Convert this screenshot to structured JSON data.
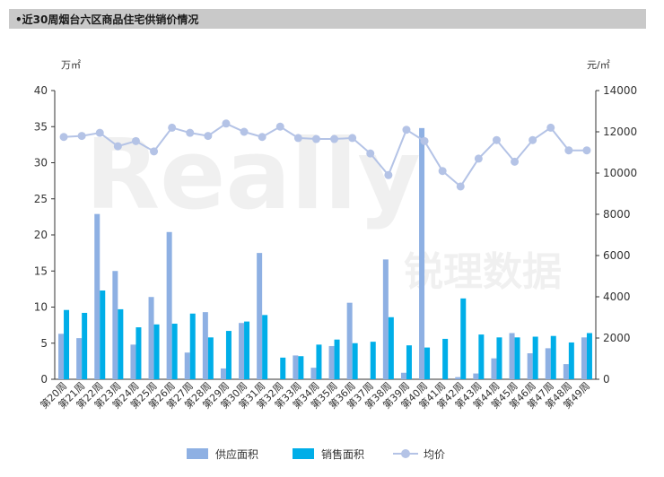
{
  "title": "•近30周烟台六区商品住宅供销价情况",
  "chart_data": {
    "type": "bar",
    "categories": [
      "第20周",
      "第21周",
      "第22周",
      "第23周",
      "第24周",
      "第25周",
      "第26周",
      "第27周",
      "第28周",
      "第29周",
      "第30周",
      "第31周",
      "第32周",
      "第33周",
      "第34周",
      "第35周",
      "第36周",
      "第37周",
      "第38周",
      "第39周",
      "第40周",
      "第41周",
      "第42周",
      "第43周",
      "第44周",
      "第45周",
      "第46周",
      "第47周",
      "第48周",
      "第49周"
    ],
    "series": [
      {
        "name": "供应面积",
        "type": "bar",
        "axis": "left",
        "color": "#8eb0e3",
        "values": [
          6.3,
          5.7,
          22.9,
          15.0,
          4.8,
          11.4,
          20.4,
          3.7,
          9.3,
          1.5,
          7.8,
          17.5,
          0,
          3.3,
          1.6,
          4.6,
          10.6,
          0,
          16.6,
          0.9,
          34.8,
          0,
          0.3,
          0.8,
          2.9,
          6.4,
          3.6,
          4.3,
          2.1,
          5.8
        ]
      },
      {
        "name": "销售面积",
        "type": "bar",
        "axis": "left",
        "color": "#00aee8",
        "values": [
          9.6,
          9.2,
          12.3,
          9.7,
          7.2,
          7.6,
          7.7,
          9.1,
          5.8,
          6.7,
          8.0,
          8.9,
          3.0,
          3.2,
          4.8,
          5.5,
          5.0,
          5.2,
          8.6,
          4.7,
          4.4,
          5.6,
          11.2,
          6.2,
          5.8,
          5.8,
          5.9,
          6.0,
          5.1,
          6.4
        ]
      },
      {
        "name": "均价",
        "type": "line",
        "axis": "right",
        "color": "#b4c3e6",
        "values": [
          11750,
          11800,
          11950,
          11300,
          11550,
          11050,
          12200,
          11950,
          11800,
          12400,
          12000,
          11750,
          12250,
          11700,
          11650,
          11650,
          11700,
          10950,
          9900,
          12100,
          11550,
          10100,
          9350,
          10700,
          11600,
          10550,
          11600,
          12200,
          11100,
          11100
        ]
      }
    ],
    "y_left": {
      "unit": "万㎡",
      "min": 0,
      "max": 40,
      "ticks": [
        0,
        5,
        10,
        15,
        20,
        25,
        30,
        35,
        40
      ]
    },
    "y_right": {
      "unit": "元/㎡",
      "min": 0,
      "max": 14000,
      "ticks": [
        0,
        2000,
        4000,
        6000,
        8000,
        10000,
        12000,
        14000
      ]
    },
    "watermark": {
      "text": "Really",
      "cn": "锐理数据"
    }
  }
}
